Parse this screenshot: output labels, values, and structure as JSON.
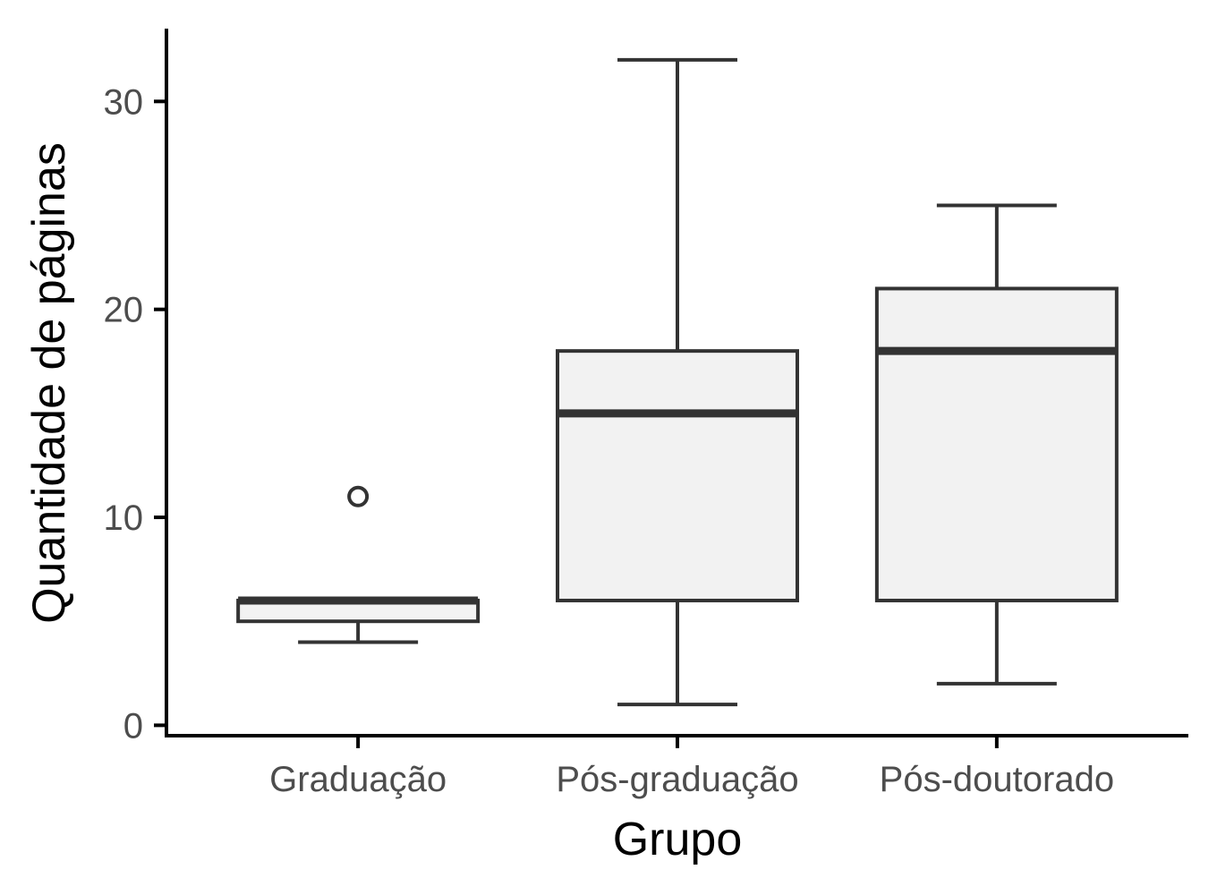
{
  "chart_data": {
    "type": "boxplot",
    "title": "",
    "xlabel": "Grupo",
    "ylabel": "Quantidade de páginas",
    "ylim": [
      -0.5,
      33.5
    ],
    "yticks": [
      0,
      10,
      20,
      30
    ],
    "ytick_labels": [
      "0",
      "10",
      "20",
      "30"
    ],
    "grid": false,
    "legend": "none",
    "categories": [
      "Graduação",
      "Pós-graduação",
      "Pós-doutorado"
    ],
    "boxes": [
      {
        "category": "Graduação",
        "whisker_low": 4,
        "q1": 5,
        "median": 6,
        "q3": 6,
        "whisker_high": 6,
        "outliers": [
          11
        ]
      },
      {
        "category": "Pós-graduação",
        "whisker_low": 1,
        "q1": 6,
        "median": 15,
        "q3": 18,
        "whisker_high": 32,
        "outliers": []
      },
      {
        "category": "Pós-doutorado",
        "whisker_low": 2,
        "q1": 6,
        "median": 18,
        "q3": 21,
        "whisker_high": 25,
        "outliers": []
      }
    ],
    "colors": {
      "box_fill": "#f2f2f2",
      "box_stroke": "#333333",
      "axis": "#000000",
      "tick_text": "#4d4d4d",
      "title_text": "#000000"
    }
  }
}
